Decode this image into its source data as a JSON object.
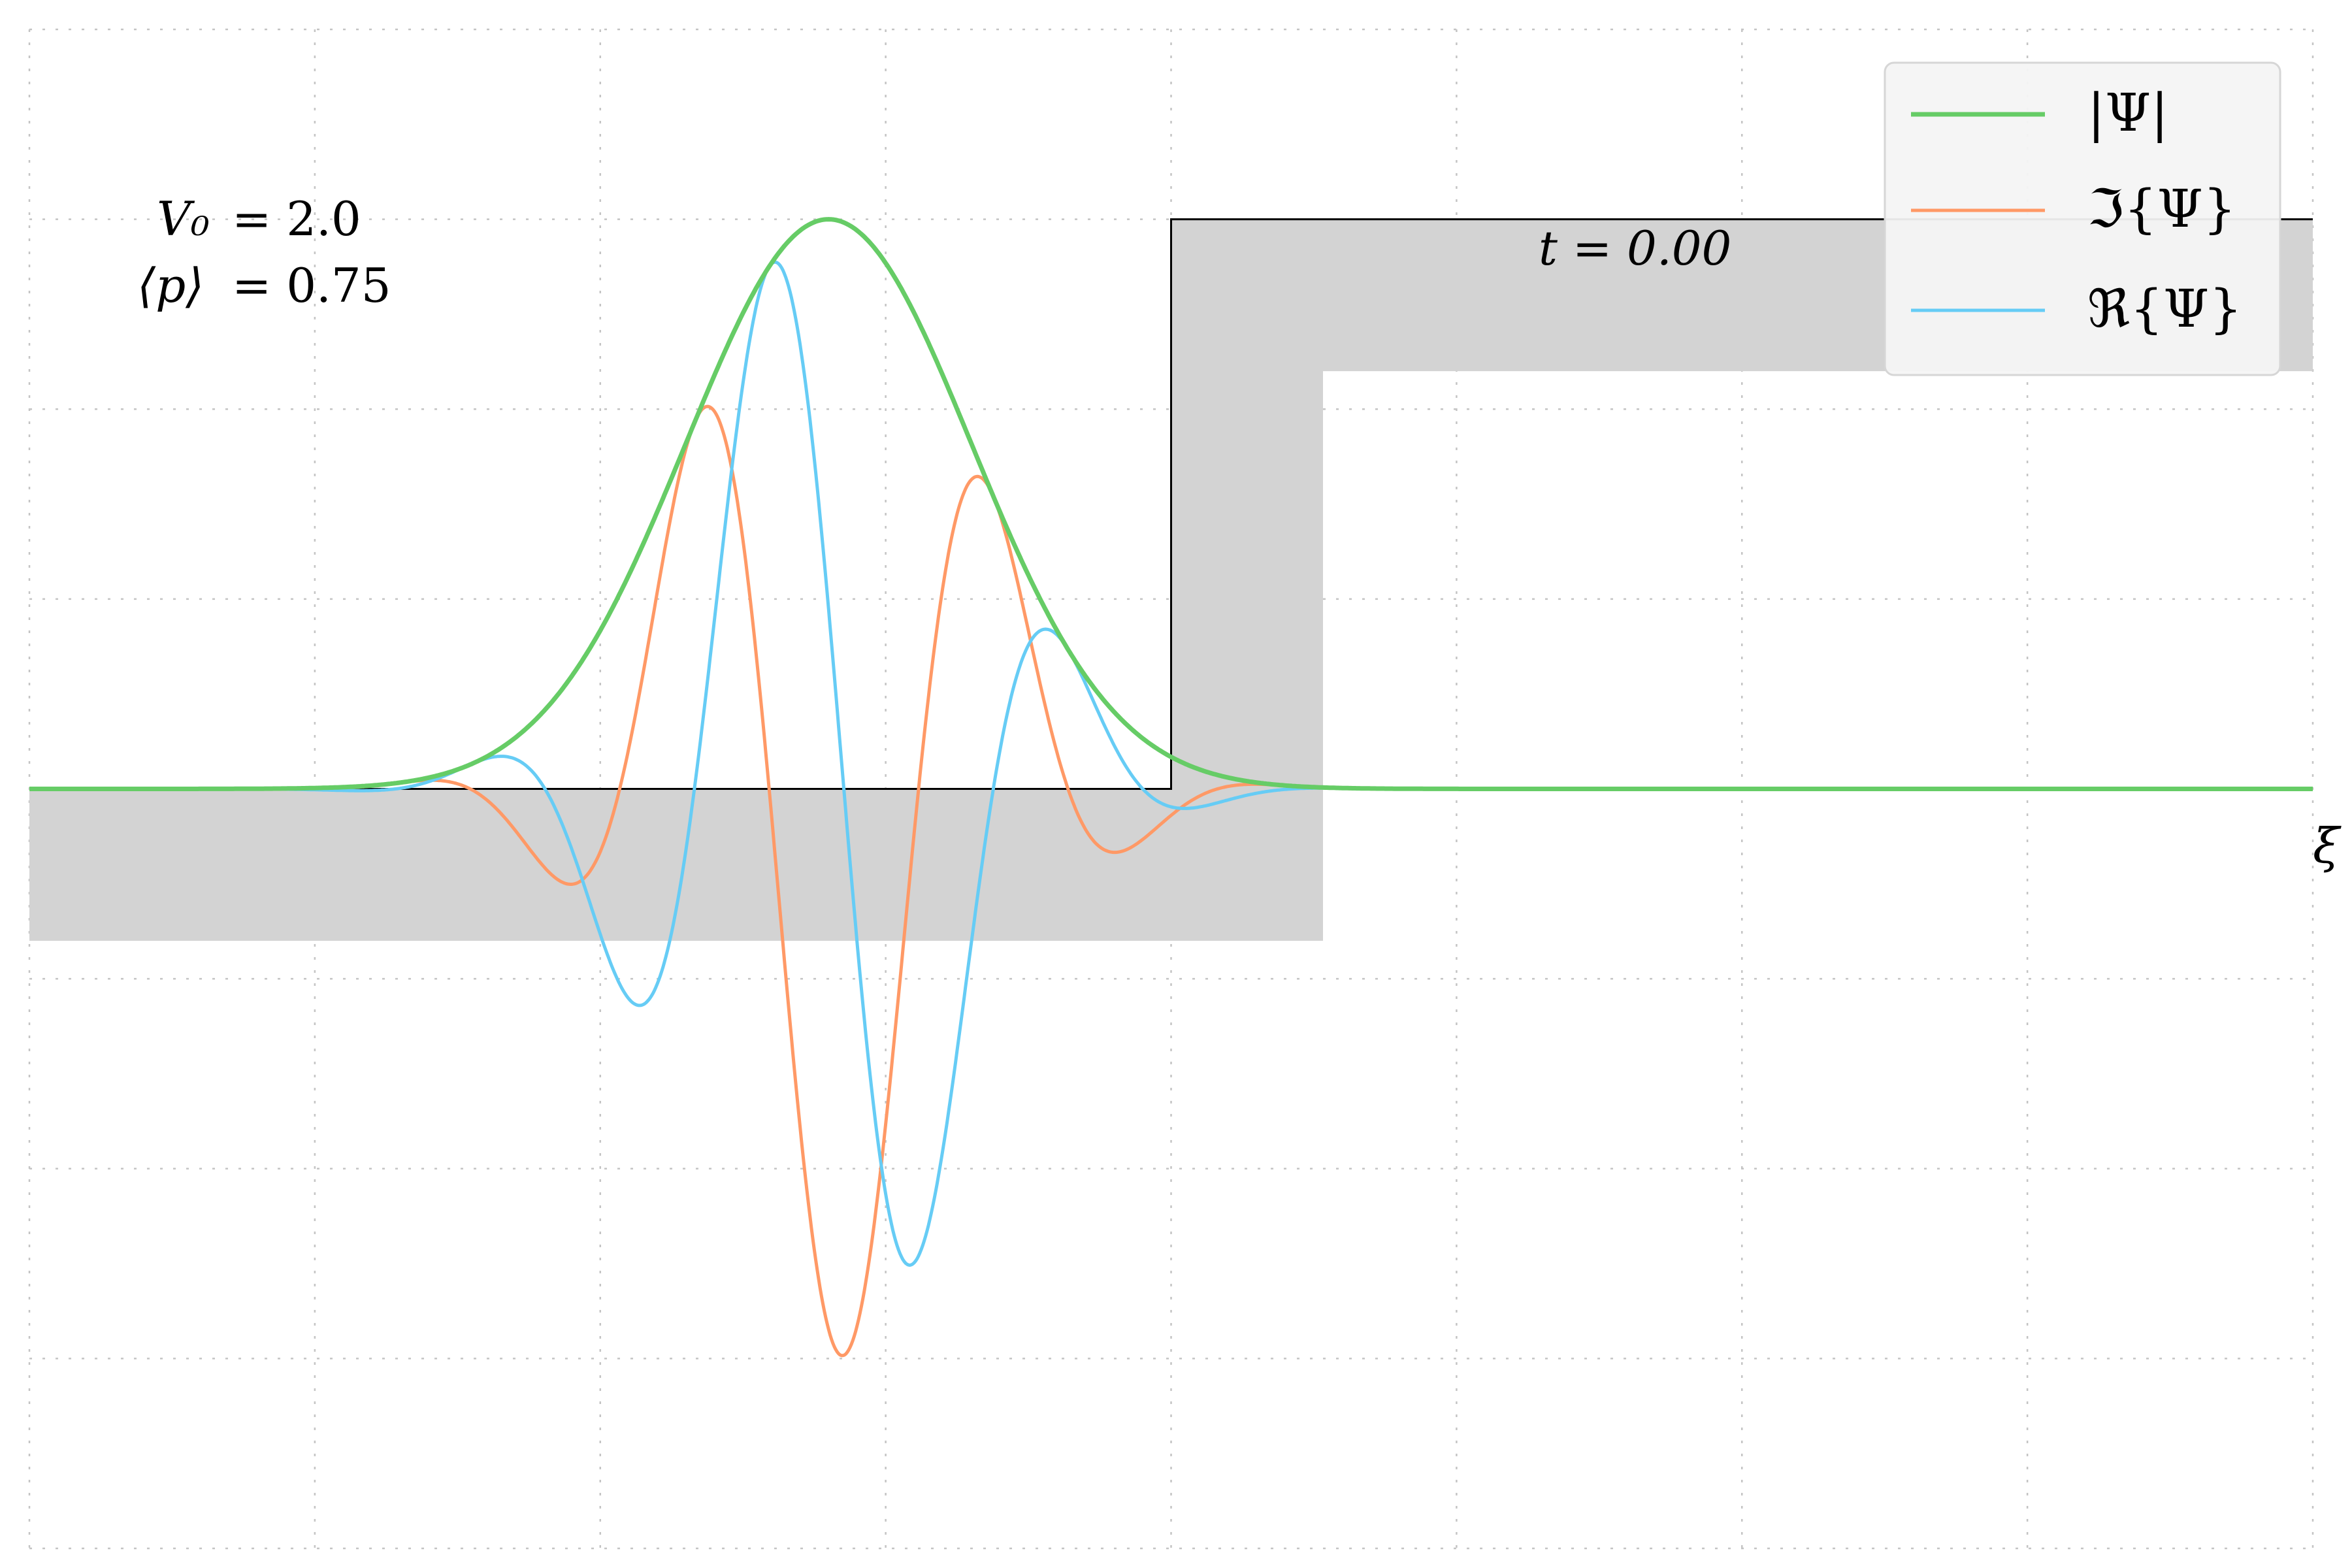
{
  "chart_data": {
    "type": "line",
    "title": "",
    "xlabel": "ξ",
    "ylabel": "",
    "xlim": [
      -8,
      8
    ],
    "ylim": [
      -2.0,
      2.0
    ],
    "grid": true,
    "legend_placement": "top-right",
    "annotations": {
      "v0_label": "V₀",
      "v0_value": "= 2.0",
      "p_label": "⟨p⟩",
      "p_value": "= 0.75",
      "time_label": "t = 0.00"
    },
    "potential": {
      "V0": 2.0,
      "step_at": 0.0,
      "scale": 0.75
    },
    "wavepacket": {
      "center": -2.4,
      "sigma": 1.0,
      "momentum": 3.0,
      "amplitude": 1.5
    },
    "series": [
      {
        "name": "|Ψ|",
        "color": "#66cc66",
        "kind": "abs"
      },
      {
        "name": "ℑ{Ψ}",
        "color": "#ff9966",
        "kind": "imag"
      },
      {
        "name": "ℜ{Ψ}",
        "color": "#66ccf5",
        "kind": "real"
      }
    ]
  }
}
